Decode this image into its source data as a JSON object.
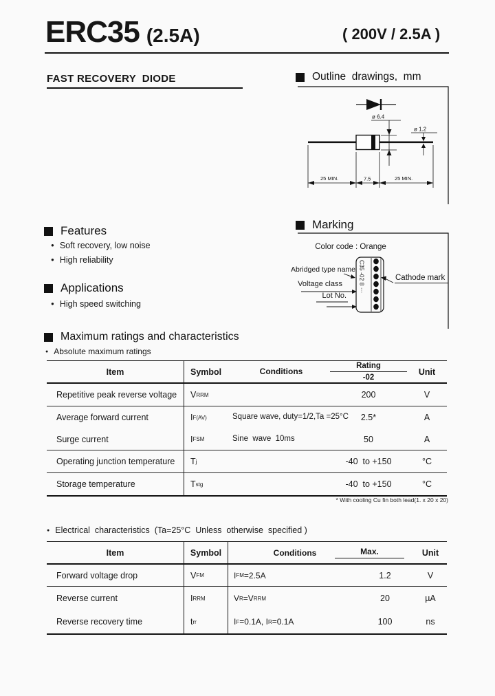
{
  "header": {
    "part": "ERC35",
    "current": "(2.5A)",
    "rating": "( 200V / 2.5A )",
    "subtitle": "FAST RECOVERY  DIODE"
  },
  "ui": {
    "bullet": "●"
  },
  "outline": {
    "heading": "Outline  drawings,  mm",
    "dia_body": "ø 6.4",
    "dia_lead": "ø 1.2",
    "lead_left": "25 MIN.",
    "body_len": "7.5",
    "lead_right": "25 MIN."
  },
  "features": {
    "heading": "Features",
    "items": [
      "Soft recovery, low noise",
      "High reliability"
    ]
  },
  "applications": {
    "heading": "Applications",
    "items": [
      "High speed switching"
    ]
  },
  "marking": {
    "heading": "Marking",
    "color_code": "Color code : Orange",
    "abridged_label": "Abridged type name",
    "voltage_label": "Voltage class",
    "lot_label": "Lot No.",
    "cathode_label": "Cathode mark",
    "body_text": "C35 -02 8 ···"
  },
  "max_ratings": {
    "heading": "Maximum ratings and characteristics",
    "subheading": "Absolute maximum ratings",
    "columns": {
      "item": "Item",
      "symbol": "Symbol",
      "conditions": "Conditions",
      "rating": "Rating",
      "rating_sub": "-02",
      "unit": "Unit"
    },
    "rows": [
      {
        "item": "Repetitive peak reverse voltage",
        "symbol": [
          {
            "t": "V"
          },
          {
            "t": "RRM",
            "s": 1
          }
        ],
        "conditions": [],
        "rating": "200",
        "unit": "V"
      },
      {
        "item": "Average forward current",
        "symbol": [
          {
            "t": "I"
          },
          {
            "t": "F(AV)",
            "s": 1
          }
        ],
        "conditions": [
          {
            "t": "Square wave, duty=1/2,"
          },
          {
            "br": 1
          },
          {
            "t": "Ta =25°C"
          }
        ],
        "rating": "2.5*",
        "unit": "A"
      },
      {
        "item": "Surge current",
        "symbol": [
          {
            "t": "I"
          },
          {
            "t": "FSM",
            "s": 1
          }
        ],
        "conditions": [
          {
            "t": "Sine  wave  10ms"
          }
        ],
        "rating": "50",
        "unit": "A"
      },
      {
        "item": "Operating junction temperature",
        "symbol": [
          {
            "t": "T"
          },
          {
            "t": "j",
            "s": 1
          }
        ],
        "conditions": [],
        "rating": "-40  to +150",
        "unit": "°C"
      },
      {
        "item": "Storage temperature",
        "symbol": [
          {
            "t": "T"
          },
          {
            "t": "stg",
            "s": 1
          }
        ],
        "conditions": [],
        "rating": "-40  to +150",
        "unit": "°C"
      }
    ],
    "footnote": "* With cooling Cu fin both lead(1. x 20 x 20)"
  },
  "electrical": {
    "heading": "Electrical  characteristics  (Ta=25°C  Unless  otherwise  specified )",
    "columns": {
      "item": "Item",
      "symbol": "Symbol",
      "conditions": "Conditions",
      "max": "Max.",
      "unit": "Unit"
    },
    "rows": [
      {
        "item": "Forward voltage drop",
        "symbol": [
          {
            "t": "V"
          },
          {
            "t": "FM",
            "s": 1
          }
        ],
        "conditions": [
          {
            "t": "I"
          },
          {
            "t": "FM",
            "s": 1
          },
          {
            "t": "=2.5A"
          }
        ],
        "max": "1.2",
        "unit": "V"
      },
      {
        "item": "Reverse current",
        "symbol": [
          {
            "t": "I"
          },
          {
            "t": "RRM",
            "s": 1
          }
        ],
        "conditions": [
          {
            "t": "V"
          },
          {
            "t": "R",
            "s": 1
          },
          {
            "t": "=V"
          },
          {
            "t": "RRM",
            "s": 1
          }
        ],
        "max": "20",
        "unit": "µA"
      },
      {
        "item": "Reverse recovery time",
        "symbol": [
          {
            "t": "t "
          },
          {
            "t": "rr",
            "s": 1
          }
        ],
        "conditions": [
          {
            "t": "I"
          },
          {
            "t": "F",
            "s": 1
          },
          {
            "t": "=0.1A, I"
          },
          {
            "t": "R",
            "s": 1
          },
          {
            "t": "=0.1A"
          }
        ],
        "max": "100",
        "unit": "ns"
      }
    ]
  }
}
